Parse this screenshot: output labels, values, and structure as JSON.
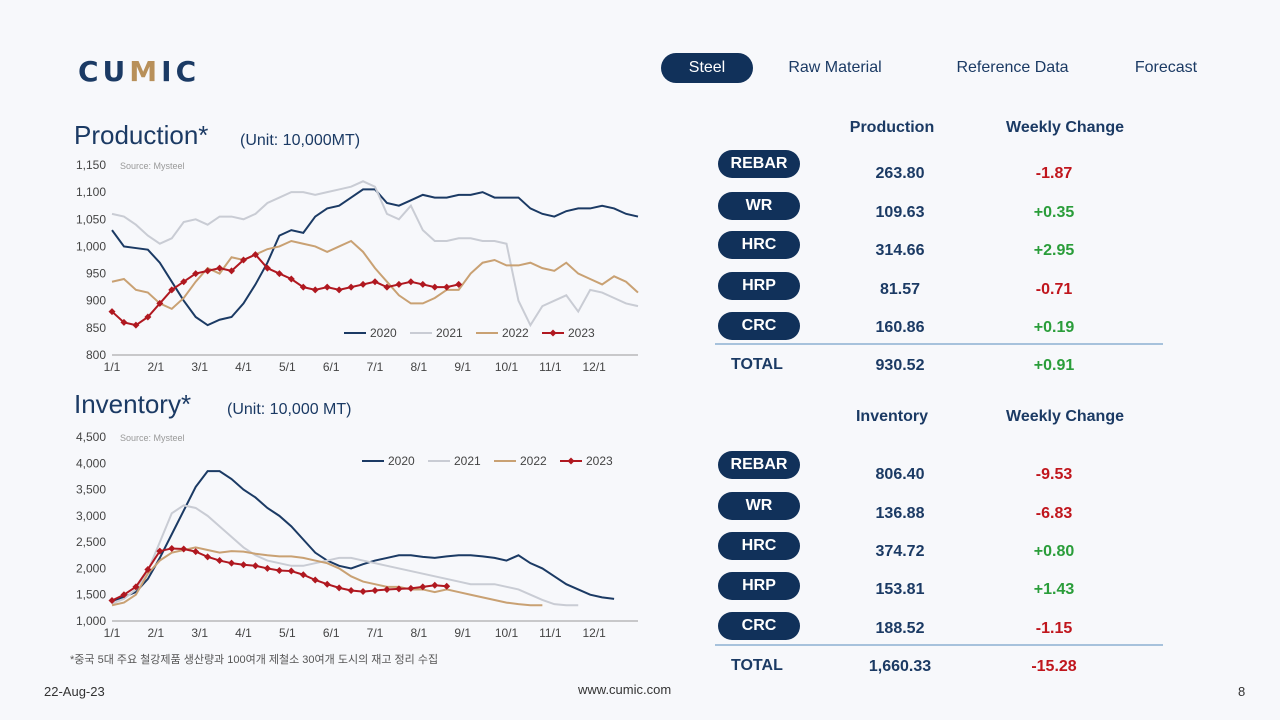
{
  "logo": {
    "left": "CU",
    "mid": "M",
    "right": "IC"
  },
  "nav": [
    {
      "label": "Steel",
      "active": true
    },
    {
      "label": "Raw Material",
      "active": false
    },
    {
      "label": "Reference Data",
      "active": false
    },
    {
      "label": "Forecast",
      "active": false
    }
  ],
  "production": {
    "title": "Production*",
    "unit": "(Unit: 10,000MT)",
    "col_value": "Production",
    "col_change": "Weekly Change",
    "rows": [
      {
        "name": "REBAR",
        "value": "263.80",
        "change": "-1.87"
      },
      {
        "name": "WR",
        "value": "109.63",
        "change": "+0.35"
      },
      {
        "name": "HRC",
        "value": "314.66",
        "change": "+2.95"
      },
      {
        "name": "HRP",
        "value": "81.57",
        "change": "-0.71"
      },
      {
        "name": "CRC",
        "value": "160.86",
        "change": "+0.19"
      }
    ],
    "total": {
      "name": "TOTAL",
      "value": "930.52",
      "change": "+0.91"
    }
  },
  "inventory": {
    "title": "Inventory*",
    "unit": "(Unit: 10,000 MT)",
    "col_value": "Inventory",
    "col_change": "Weekly Change",
    "rows": [
      {
        "name": "REBAR",
        "value": "806.40",
        "change": "-9.53"
      },
      {
        "name": "WR",
        "value": "136.88",
        "change": "-6.83"
      },
      {
        "name": "HRC",
        "value": "374.72",
        "change": "+0.80"
      },
      {
        "name": "HRP",
        "value": "153.81",
        "change": "+1.43"
      },
      {
        "name": "CRC",
        "value": "188.52",
        "change": "-1.15"
      }
    ],
    "total": {
      "name": "TOTAL",
      "value": "1,660.33",
      "change": "-15.28"
    }
  },
  "colors": {
    "positive": "#2a9d3a",
    "negative": "#c0161d",
    "navy": "#11315a"
  },
  "footer": {
    "date": "22-Aug-23",
    "url": "www.cumic.com",
    "page": "8",
    "note": "*중국 5대 주요 철강제품 생산량과 100여개 제철소 30여개 도시의 재고 정리 수집"
  },
  "chart_data": [
    {
      "type": "line",
      "source": "Source: Mysteel",
      "ylim": [
        800,
        1150
      ],
      "yticks": [
        "800",
        "850",
        "900",
        "950",
        "1,000",
        "1,050",
        "1,100",
        "1,150"
      ],
      "xticks": [
        "1/1",
        "2/1",
        "3/1",
        "4/1",
        "5/1",
        "6/1",
        "7/1",
        "8/1",
        "9/1",
        "10/1",
        "11/1",
        "12/1"
      ],
      "series": [
        {
          "name": "2020",
          "color": "#1b3a64",
          "marker": false,
          "values": [
            1030,
            1000,
            997,
            994,
            970,
            935,
            900,
            870,
            855,
            865,
            870,
            895,
            930,
            970,
            1020,
            1030,
            1025,
            1055,
            1070,
            1075,
            1090,
            1105,
            1105,
            1080,
            1075,
            1085,
            1095,
            1090,
            1090,
            1095,
            1095,
            1100,
            1090,
            1090,
            1090,
            1070,
            1060,
            1055,
            1065,
            1070,
            1070,
            1075,
            1070,
            1060,
            1055
          ]
        },
        {
          "name": "2021",
          "color": "#c9ccd4",
          "marker": false,
          "values": [
            1060,
            1055,
            1040,
            1020,
            1005,
            1015,
            1045,
            1050,
            1040,
            1055,
            1055,
            1050,
            1060,
            1080,
            1090,
            1100,
            1100,
            1095,
            1100,
            1105,
            1110,
            1120,
            1110,
            1060,
            1050,
            1075,
            1030,
            1010,
            1010,
            1015,
            1015,
            1010,
            1010,
            1005,
            900,
            855,
            890,
            900,
            910,
            880,
            920,
            915,
            905,
            895,
            890
          ]
        },
        {
          "name": "2022",
          "color": "#c9a173",
          "marker": false,
          "values": [
            935,
            940,
            920,
            915,
            895,
            885,
            905,
            935,
            960,
            950,
            980,
            975,
            985,
            995,
            1000,
            1010,
            1005,
            1000,
            990,
            1000,
            1010,
            990,
            960,
            935,
            910,
            895,
            895,
            905,
            920,
            920,
            950,
            970,
            975,
            965,
            965,
            970,
            960,
            955,
            970,
            950,
            940,
            930,
            945,
            935,
            915
          ]
        },
        {
          "name": "2023",
          "color": "#b01820",
          "marker": true,
          "values": [
            880,
            860,
            855,
            870,
            895,
            920,
            935,
            950,
            955,
            960,
            955,
            975,
            985,
            960,
            950,
            940,
            925,
            920,
            925,
            920,
            925,
            930,
            935,
            925,
            930,
            935,
            930,
            925,
            925,
            930
          ]
        }
      ]
    },
    {
      "type": "line",
      "source": "Source: Mysteel",
      "ylim": [
        1000,
        4500
      ],
      "yticks": [
        "1,000",
        "1,500",
        "2,000",
        "2,500",
        "3,000",
        "3,500",
        "4,000",
        "4,500"
      ],
      "xticks": [
        "1/1",
        "2/1",
        "3/1",
        "4/1",
        "5/1",
        "6/1",
        "7/1",
        "8/1",
        "9/1",
        "10/1",
        "11/1",
        "12/1"
      ],
      "series": [
        {
          "name": "2020",
          "color": "#1b3a64",
          "marker": false,
          "values": [
            1380,
            1460,
            1550,
            1800,
            2200,
            2650,
            3100,
            3550,
            3850,
            3850,
            3700,
            3500,
            3350,
            3150,
            3000,
            2800,
            2550,
            2300,
            2150,
            2050,
            2000,
            2080,
            2150,
            2200,
            2250,
            2250,
            2220,
            2200,
            2230,
            2250,
            2250,
            2230,
            2200,
            2150,
            2250,
            2100,
            2000,
            1850,
            1700,
            1600,
            1500,
            1450,
            1420
          ]
        },
        {
          "name": "2021",
          "color": "#c9ccd4",
          "marker": false,
          "values": [
            1330,
            1420,
            1600,
            1950,
            2500,
            3050,
            3200,
            3150,
            3000,
            2800,
            2600,
            2400,
            2250,
            2150,
            2100,
            2050,
            2050,
            2100,
            2150,
            2200,
            2200,
            2150,
            2100,
            2050,
            2000,
            1950,
            1900,
            1850,
            1800,
            1750,
            1700,
            1700,
            1700,
            1650,
            1600,
            1500,
            1400,
            1320,
            1300,
            1300
          ]
        },
        {
          "name": "2022",
          "color": "#c9a173",
          "marker": false,
          "values": [
            1300,
            1350,
            1500,
            1900,
            2150,
            2300,
            2350,
            2400,
            2350,
            2300,
            2330,
            2320,
            2280,
            2250,
            2230,
            2230,
            2200,
            2150,
            2100,
            2000,
            1850,
            1750,
            1700,
            1650,
            1650,
            1600,
            1600,
            1550,
            1600,
            1550,
            1500,
            1450,
            1400,
            1350,
            1320,
            1300,
            1300
          ]
        },
        {
          "name": "2023",
          "color": "#b01820",
          "marker": true,
          "values": [
            1390,
            1500,
            1650,
            1980,
            2330,
            2380,
            2370,
            2320,
            2220,
            2150,
            2100,
            2070,
            2050,
            2000,
            1960,
            1950,
            1880,
            1780,
            1700,
            1630,
            1580,
            1560,
            1580,
            1600,
            1610,
            1620,
            1650,
            1680,
            1660
          ]
        }
      ]
    }
  ]
}
